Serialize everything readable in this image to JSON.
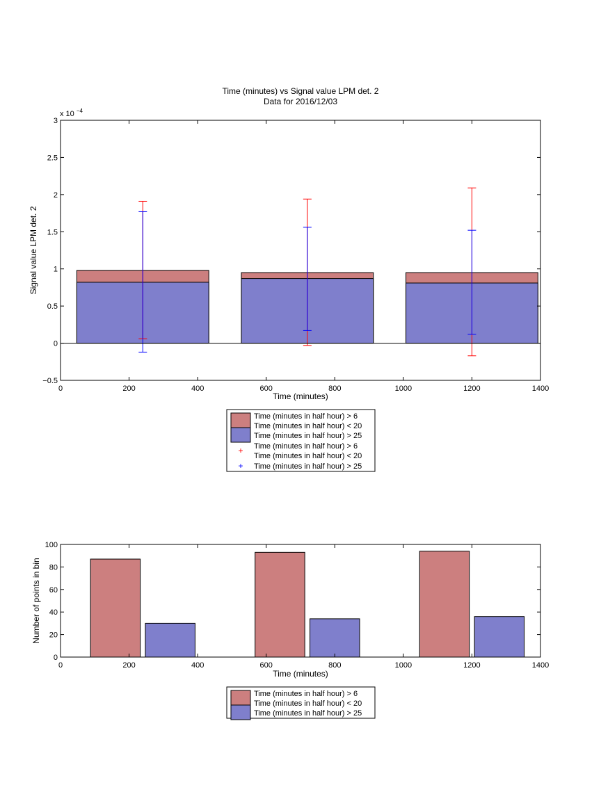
{
  "chart_data": [
    {
      "type": "bar",
      "title": "Time (minutes) vs Signal value LPM det. 2",
      "subtitle": "Data for 2016/12/03",
      "xlabel": "Time (minutes)",
      "ylabel": "Signal value LPM det. 2",
      "y_exponent_label": "x 10",
      "y_exponent_power": "−4",
      "xlim": [
        0,
        1400
      ],
      "ylim": [
        -0.5,
        3
      ],
      "xticks": [
        0,
        200,
        400,
        600,
        800,
        1000,
        1200,
        1400
      ],
      "yticks": [
        -0.5,
        0,
        0.5,
        1,
        1.5,
        2,
        2.5,
        3
      ],
      "ytick_labels": [
        "−0.5",
        "0",
        "0.5",
        "1",
        "1.5",
        "2",
        "2.5",
        "3"
      ],
      "categories": [
        240,
        720,
        1200
      ],
      "bar_width": 385,
      "grid": false,
      "legend_position": "below",
      "series": [
        {
          "name": "Time (minutes in half hour) > 6\nTime (minutes in half hour) < 20",
          "kind": "bar",
          "color": "#cc7f7f",
          "values": [
            0.98,
            0.95,
            0.95
          ]
        },
        {
          "name": "Time (minutes in half hour) > 25",
          "kind": "bar",
          "color": "#7f7fcc",
          "values": [
            0.82,
            0.87,
            0.81
          ]
        },
        {
          "name": "Time (minutes in half hour) > 6\nTime (minutes in half hour) < 20",
          "kind": "errorbar",
          "color": "#ff0000",
          "x": [
            240,
            720,
            1200
          ],
          "low": [
            0.06,
            -0.03,
            -0.17
          ],
          "high": [
            1.91,
            1.94,
            2.09
          ]
        },
        {
          "name": "Time (minutes in half hour) > 25",
          "kind": "errorbar",
          "color": "#0000ff",
          "x": [
            240,
            720,
            1200
          ],
          "low": [
            -0.12,
            0.17,
            0.12
          ],
          "high": [
            1.77,
            1.56,
            1.52
          ]
        }
      ]
    },
    {
      "type": "bar",
      "xlabel": "Time (minutes)",
      "ylabel": "Number of points in bin",
      "xlim": [
        0,
        1400
      ],
      "ylim": [
        0,
        100
      ],
      "xticks": [
        0,
        200,
        400,
        600,
        800,
        1000,
        1200,
        1400
      ],
      "yticks": [
        0,
        20,
        40,
        60,
        80,
        100
      ],
      "grid": false,
      "legend_position": "below",
      "bar_width": 145,
      "series": [
        {
          "name": "Time (minutes in half hour) > 6\nTime (minutes in half hour) < 20",
          "color": "#cc7f7f",
          "x": [
            160,
            640,
            1120
          ],
          "values": [
            87,
            93,
            94
          ]
        },
        {
          "name": "Time (minutes in half hour) > 25",
          "color": "#7f7fcc",
          "x": [
            320,
            800,
            1280
          ],
          "values": [
            30,
            34,
            36
          ]
        }
      ]
    }
  ]
}
